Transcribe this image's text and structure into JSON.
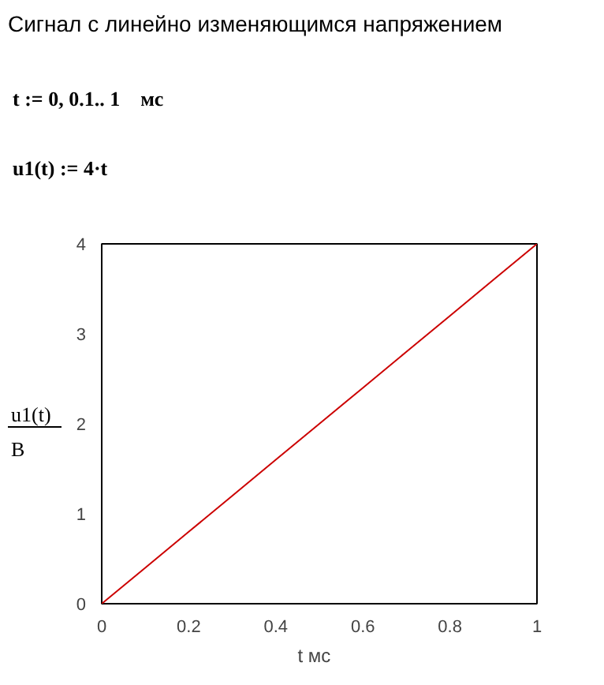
{
  "chart_data": {
    "type": "line",
    "title": "Сигнал с линейно изменяющимся напряжением",
    "annotations": [
      "t := 0, 0.1.. 1    мс",
      "u1(t) := 4·t"
    ],
    "xlabel": "t   мс",
    "ylabel": "u1(t)\nB",
    "x": [
      0,
      0.1,
      0.2,
      0.3,
      0.4,
      0.5,
      0.6,
      0.7,
      0.8,
      0.9,
      1
    ],
    "series": [
      {
        "color": "#cc0000",
        "values": [
          0,
          0.4,
          0.8,
          1.2,
          1.6,
          2,
          2.4,
          2.8,
          3.2,
          3.6,
          4
        ]
      }
    ],
    "xlim": [
      0,
      1
    ],
    "ylim": [
      0,
      4
    ],
    "xticks": [
      0,
      0.2,
      0.4,
      0.6,
      0.8,
      1
    ],
    "yticks": [
      0,
      1,
      2,
      3,
      4
    ],
    "grid": false,
    "line_style": "solid"
  }
}
